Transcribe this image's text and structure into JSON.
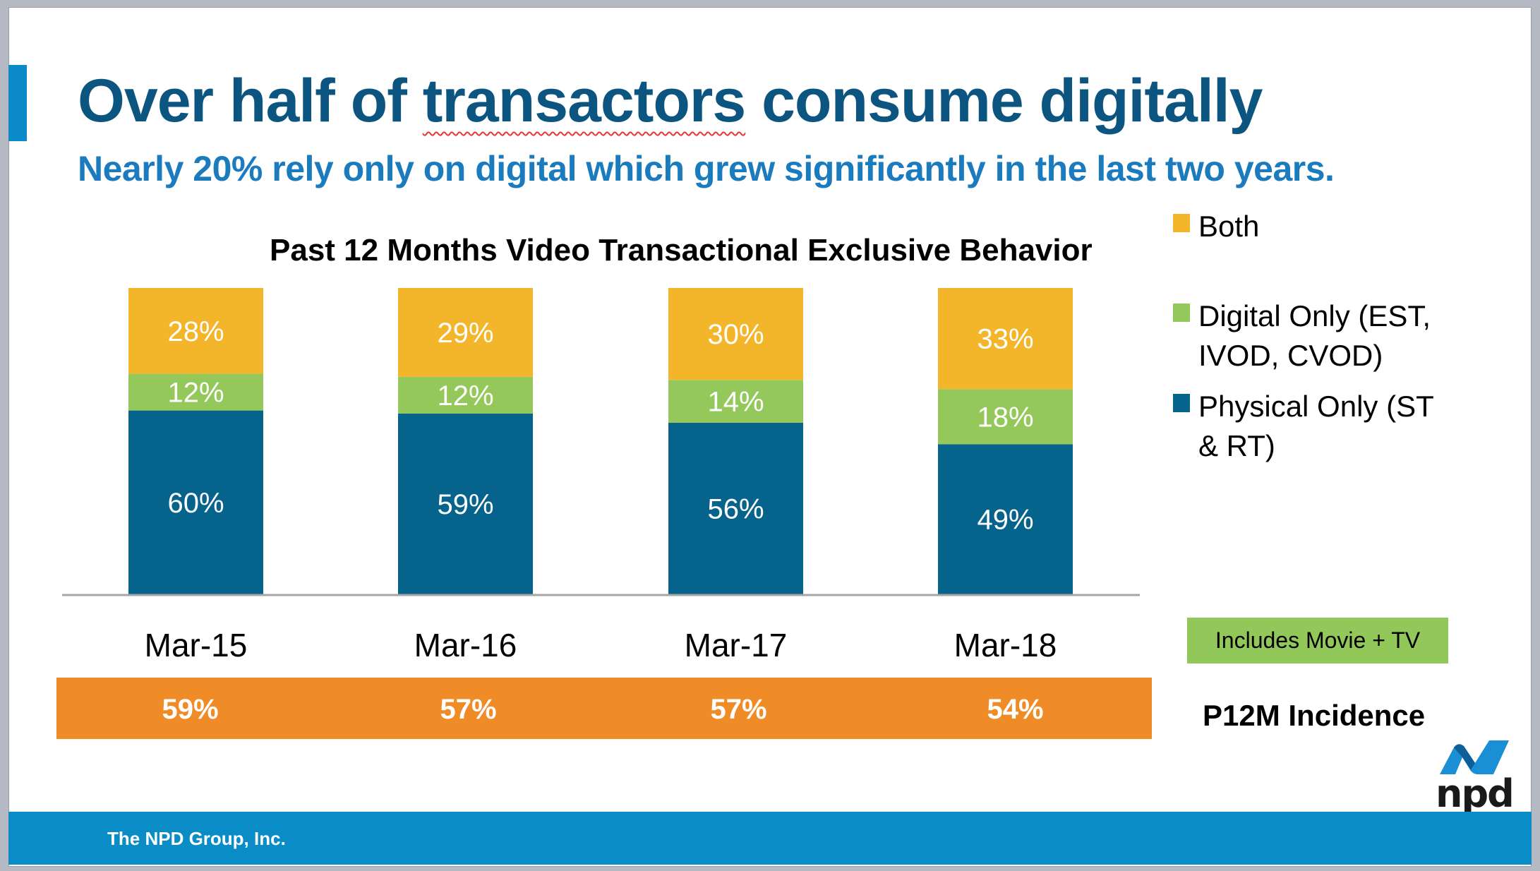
{
  "slide": {
    "title_prefix": "Over half of ",
    "title_flagged_word": "transactors",
    "title_suffix": " consume digitally",
    "subtitle": "Nearly 20% rely only on digital which grew significantly in the last two years.",
    "note": "Includes Movie + TV",
    "incidence_label": "P12M Incidence",
    "footer": "The NPD Group, Inc.",
    "logo_text": "npd",
    "colors": {
      "title": "#0b5580",
      "subtitle": "#1a7bbf",
      "accent": "#0a8ac6",
      "incidence_band": "#f08c28",
      "note_box": "#92c85a"
    }
  },
  "chart_data": {
    "type": "bar",
    "stacked": true,
    "title": "Past 12 Months Video Transactional Exclusive Behavior",
    "categories": [
      "Mar-15",
      "Mar-16",
      "Mar-17",
      "Mar-18"
    ],
    "series": [
      {
        "name": "Physical Only (ST & RT)",
        "color": "#06638c",
        "values": [
          60,
          59,
          56,
          49
        ]
      },
      {
        "name": "Digital Only (EST, IVOD, CVOD)",
        "color": "#95c85b",
        "values": [
          12,
          12,
          14,
          18
        ]
      },
      {
        "name": "Both",
        "color": "#f3b62a",
        "values": [
          28,
          29,
          30,
          33
        ]
      }
    ],
    "legend_order": [
      "Both",
      "Digital Only (EST, IVOD, CVOD)",
      "Physical Only (ST & RT)"
    ],
    "legend_position": "right",
    "value_format": "percent",
    "ylim": [
      0,
      100
    ],
    "grid": false,
    "xlabel": "",
    "ylabel": "",
    "incidence": {
      "label": "P12M Incidence",
      "values": [
        59,
        57,
        57,
        54
      ]
    }
  }
}
